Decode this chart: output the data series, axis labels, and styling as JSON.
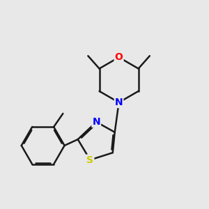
{
  "background_color": "#e8e8e8",
  "bond_color": "#1a1a1a",
  "atom_colors": {
    "N": "#0000ff",
    "O": "#ff0000",
    "S": "#cccc00",
    "C": "#1a1a1a"
  },
  "figsize": [
    3.0,
    3.0
  ],
  "dpi": 100
}
